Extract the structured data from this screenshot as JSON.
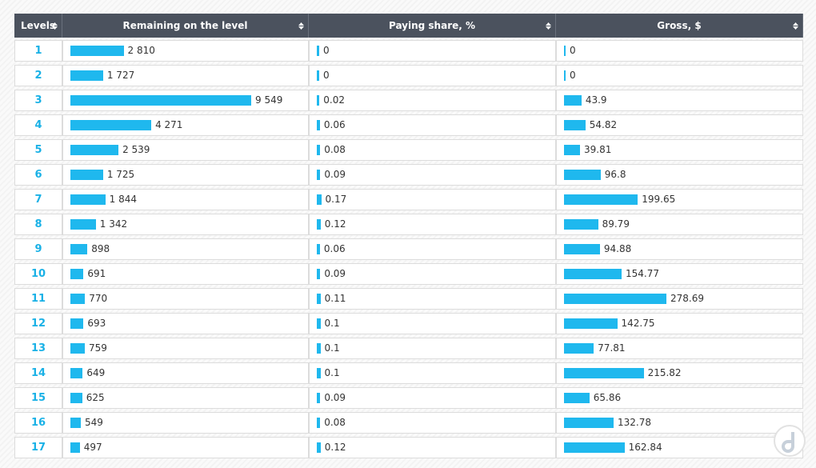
{
  "table": {
    "headers": [
      "Levels",
      "Remaining on the level",
      "Paying share, %",
      "Gross, $"
    ],
    "levels": [
      1,
      2,
      3,
      4,
      5,
      6,
      7,
      8,
      9,
      10,
      11,
      12,
      13,
      14,
      15,
      16,
      17
    ],
    "remaining": {
      "values": [
        2810,
        1727,
        9549,
        4271,
        2539,
        1725,
        1844,
        1342,
        898,
        691,
        770,
        693,
        759,
        649,
        625,
        549,
        497
      ],
      "value_labels": [
        "2 810",
        "1 727",
        "9 549",
        "4 271",
        "2 539",
        "1 725",
        "1 844",
        "1 342",
        "898",
        "691",
        "770",
        "693",
        "759",
        "649",
        "625",
        "549",
        "497"
      ]
    },
    "paying_share": {
      "values": [
        0,
        0,
        0.02,
        0.06,
        0.08,
        0.09,
        0.17,
        0.12,
        0.06,
        0.09,
        0.11,
        0.1,
        0.1,
        0.1,
        0.09,
        0.08,
        0.12
      ]
    },
    "gross": {
      "values": [
        0,
        0,
        43.9,
        54.82,
        39.81,
        96.8,
        199.65,
        89.79,
        94.88,
        154.77,
        278.69,
        142.75,
        77.81,
        215.82,
        65.86,
        132.78,
        162.84
      ]
    }
  }
}
